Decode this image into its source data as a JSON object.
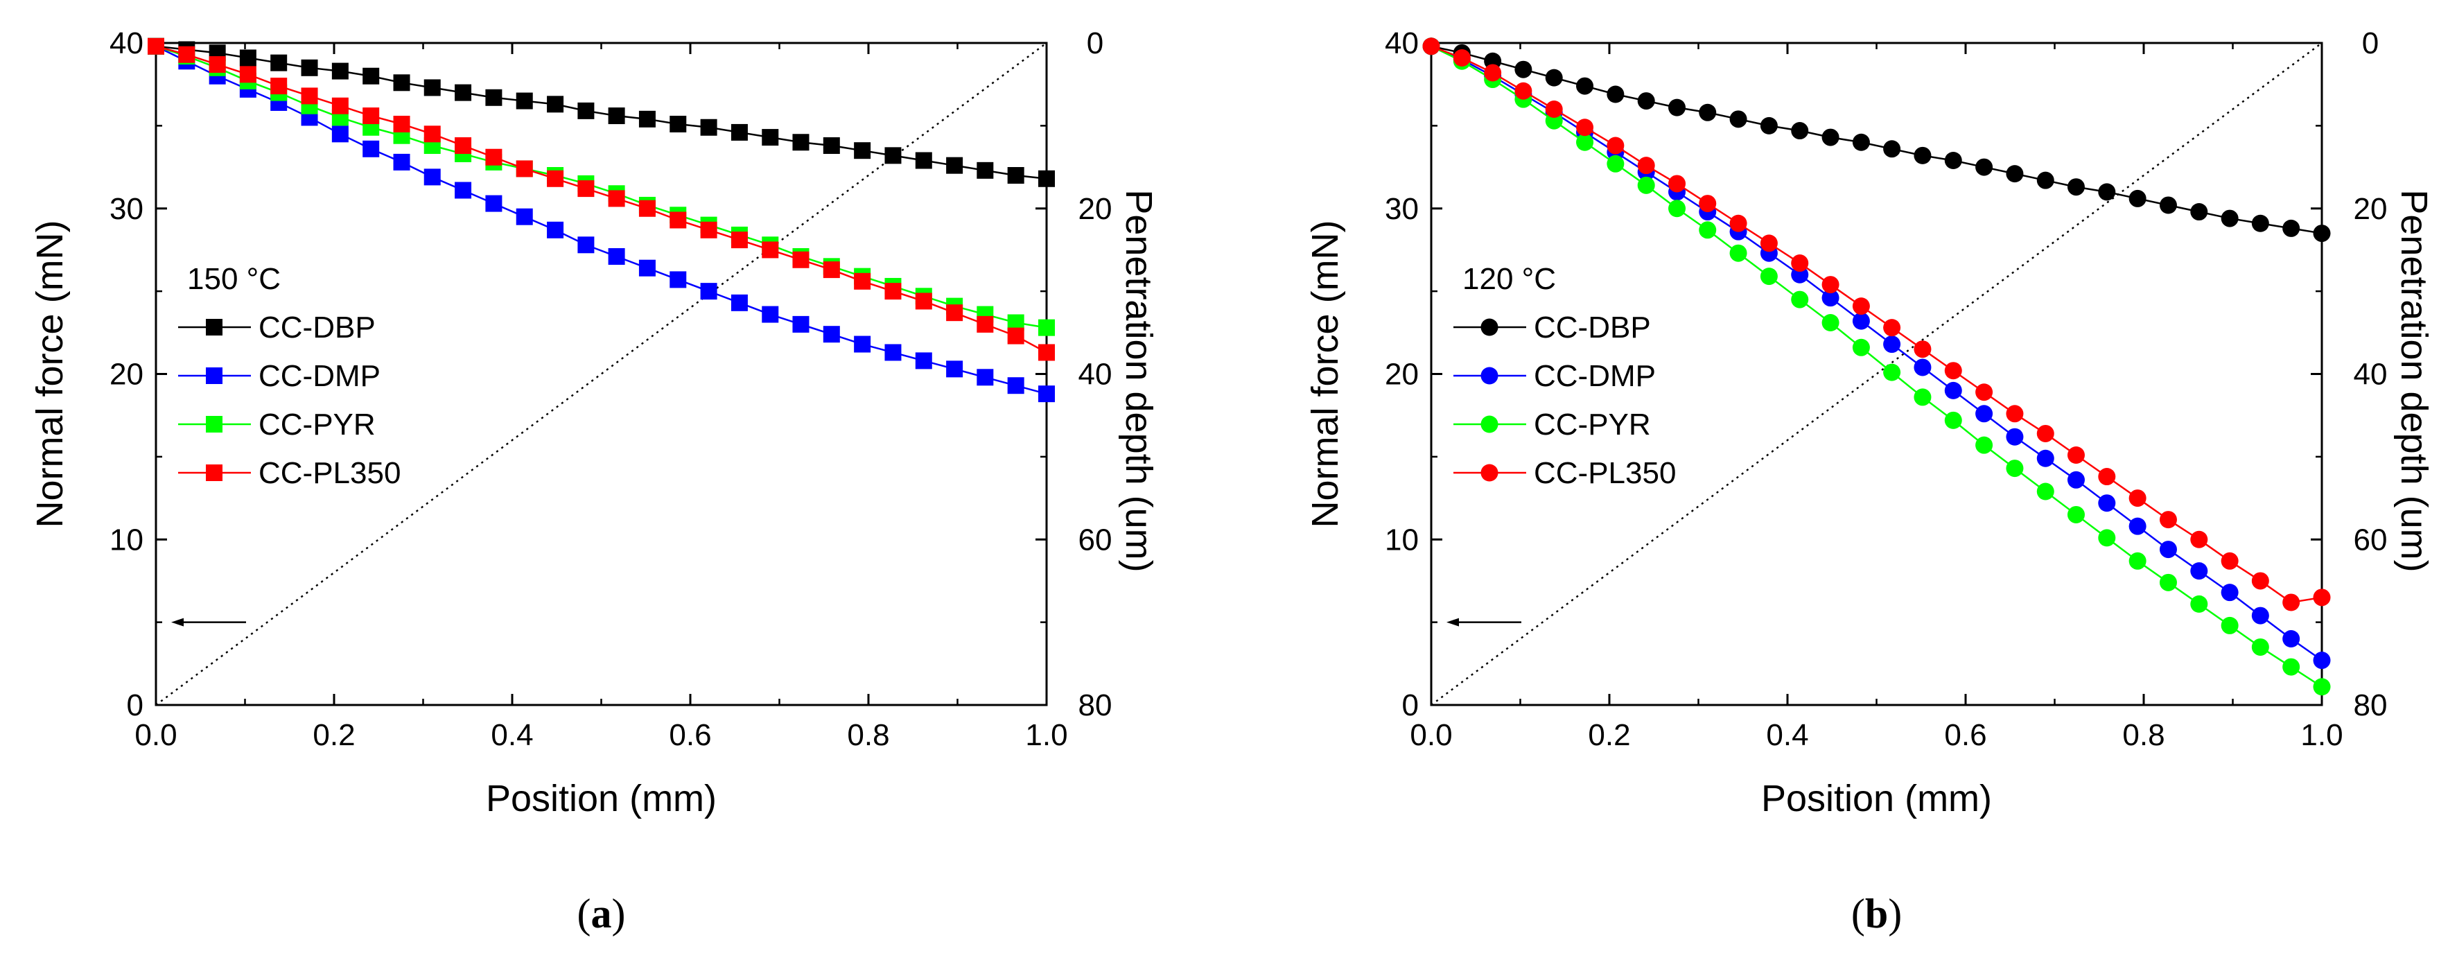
{
  "chart_data": [
    {
      "type": "line",
      "panel_label": "(a)",
      "panel_label_parts": {
        "open": "(",
        "letter": "a",
        "close": ")"
      },
      "annotation": "150 °C",
      "xlabel": "Position (mm)",
      "ylabel": "Normal force (mN)",
      "y2label": "Penetration depth (um)",
      "xlim": [
        0,
        1
      ],
      "ylim": [
        0,
        40
      ],
      "y2lim": [
        80,
        0
      ],
      "xticks": [
        0.0,
        0.2,
        0.4,
        0.6,
        0.8,
        1.0
      ],
      "xtick_labels": [
        "0.0",
        "0.2",
        "0.4",
        "0.6",
        "0.8",
        "1.0"
      ],
      "yticks": [
        0,
        10,
        20,
        30,
        40
      ],
      "ytick_labels": [
        "0",
        "10",
        "20",
        "30",
        "40"
      ],
      "y2ticks": [
        0,
        20,
        40,
        60,
        80
      ],
      "y2tick_labels": [
        "0",
        "20",
        "40",
        "60",
        "80"
      ],
      "marker": "square",
      "grid": false,
      "legend_position": "center-left",
      "x": [
        0,
        0.0345,
        0.069,
        0.1034,
        0.1379,
        0.1724,
        0.2069,
        0.2414,
        0.2759,
        0.3103,
        0.3448,
        0.3793,
        0.4138,
        0.4483,
        0.4828,
        0.5172,
        0.5517,
        0.5862,
        0.6207,
        0.6552,
        0.6897,
        0.7241,
        0.7586,
        0.7931,
        0.8276,
        0.8621,
        0.8966,
        0.931,
        0.9655,
        1.0
      ],
      "series": [
        {
          "name": "CC-DBP",
          "color": "#000000",
          "values": [
            39.8,
            39.6,
            39.4,
            39.1,
            38.8,
            38.5,
            38.3,
            38.0,
            37.6,
            37.3,
            37.0,
            36.7,
            36.5,
            36.3,
            35.9,
            35.6,
            35.4,
            35.1,
            34.9,
            34.6,
            34.3,
            34.0,
            33.8,
            33.5,
            33.2,
            32.9,
            32.6,
            32.3,
            32.0,
            31.8
          ]
        },
        {
          "name": "CC-DMP",
          "color": "#0000ff",
          "values": [
            39.8,
            38.9,
            38.0,
            37.2,
            36.4,
            35.5,
            34.5,
            33.6,
            32.8,
            31.9,
            31.1,
            30.3,
            29.5,
            28.7,
            27.8,
            27.1,
            26.4,
            25.7,
            25.0,
            24.3,
            23.6,
            23.0,
            22.4,
            21.8,
            21.3,
            20.8,
            20.3,
            19.8,
            19.3,
            18.8
          ]
        },
        {
          "name": "CC-PYR",
          "color": "#00ff00",
          "values": [
            39.8,
            39.2,
            38.5,
            37.7,
            37.0,
            36.2,
            35.5,
            34.9,
            34.4,
            33.8,
            33.3,
            32.8,
            32.4,
            32.0,
            31.5,
            30.9,
            30.2,
            29.6,
            29.0,
            28.4,
            27.8,
            27.1,
            26.5,
            25.9,
            25.3,
            24.7,
            24.1,
            23.6,
            23.1,
            22.8
          ]
        },
        {
          "name": "CC-PL350",
          "color": "#ff0000",
          "values": [
            39.8,
            39.3,
            38.7,
            38.1,
            37.4,
            36.8,
            36.2,
            35.6,
            35.1,
            34.5,
            33.8,
            33.1,
            32.4,
            31.8,
            31.2,
            30.6,
            30.0,
            29.3,
            28.7,
            28.1,
            27.5,
            26.9,
            26.3,
            25.6,
            25.0,
            24.4,
            23.7,
            23.0,
            22.3,
            21.3
          ]
        }
      ]
    },
    {
      "type": "line",
      "panel_label": "(b)",
      "panel_label_parts": {
        "open": "(",
        "letter": "b",
        "close": ")"
      },
      "annotation": "120 °C",
      "xlabel": "Position (mm)",
      "ylabel": "Normal force (mN)",
      "y2label": "Penetration depth (um)",
      "xlim": [
        0,
        1
      ],
      "ylim": [
        0,
        40
      ],
      "y2lim": [
        80,
        0
      ],
      "xticks": [
        0.0,
        0.2,
        0.4,
        0.6,
        0.8,
        1.0
      ],
      "xtick_labels": [
        "0.0",
        "0.2",
        "0.4",
        "0.6",
        "0.8",
        "1.0"
      ],
      "yticks": [
        0,
        10,
        20,
        30,
        40
      ],
      "ytick_labels": [
        "0",
        "10",
        "20",
        "30",
        "40"
      ],
      "y2ticks": [
        0,
        20,
        40,
        60,
        80
      ],
      "y2tick_labels": [
        "0",
        "20",
        "40",
        "60",
        "80"
      ],
      "marker": "circle",
      "grid": false,
      "legend_position": "center-left",
      "x": [
        0,
        0.0345,
        0.069,
        0.1034,
        0.1379,
        0.1724,
        0.2069,
        0.2414,
        0.2759,
        0.3103,
        0.3448,
        0.3793,
        0.4138,
        0.4483,
        0.4828,
        0.5172,
        0.5517,
        0.5862,
        0.6207,
        0.6552,
        0.6897,
        0.7241,
        0.7586,
        0.7931,
        0.8276,
        0.8621,
        0.8966,
        0.931,
        0.9655,
        1.0
      ],
      "series": [
        {
          "name": "CC-DBP",
          "color": "#000000",
          "values": [
            39.8,
            39.4,
            38.9,
            38.4,
            37.9,
            37.4,
            36.9,
            36.5,
            36.1,
            35.8,
            35.4,
            35.0,
            34.7,
            34.3,
            34.0,
            33.6,
            33.2,
            32.9,
            32.5,
            32.1,
            31.7,
            31.3,
            31.0,
            30.6,
            30.2,
            29.8,
            29.4,
            29.1,
            28.8,
            28.5
          ]
        },
        {
          "name": "CC-DMP",
          "color": "#0000ff",
          "values": [
            39.8,
            39.0,
            38.0,
            36.9,
            35.8,
            34.6,
            33.4,
            32.2,
            31.0,
            29.8,
            28.6,
            27.3,
            26.0,
            24.6,
            23.2,
            21.8,
            20.4,
            19.0,
            17.6,
            16.2,
            14.9,
            13.6,
            12.2,
            10.8,
            9.4,
            8.1,
            6.8,
            5.4,
            4.0,
            2.7
          ]
        },
        {
          "name": "CC-PYR",
          "color": "#00ff00",
          "values": [
            39.8,
            38.9,
            37.8,
            36.6,
            35.3,
            34.0,
            32.7,
            31.4,
            30.0,
            28.7,
            27.3,
            25.9,
            24.5,
            23.1,
            21.6,
            20.1,
            18.6,
            17.2,
            15.7,
            14.3,
            12.9,
            11.5,
            10.1,
            8.7,
            7.4,
            6.1,
            4.8,
            3.5,
            2.3,
            1.1
          ]
        },
        {
          "name": "CC-PL350",
          "color": "#ff0000",
          "values": [
            39.8,
            39.1,
            38.2,
            37.1,
            36.0,
            34.9,
            33.8,
            32.6,
            31.5,
            30.3,
            29.1,
            27.9,
            26.7,
            25.4,
            24.1,
            22.8,
            21.5,
            20.2,
            18.9,
            17.6,
            16.4,
            15.1,
            13.8,
            12.5,
            11.2,
            10.0,
            8.7,
            7.5,
            6.2,
            6.5
          ]
        }
      ]
    }
  ]
}
